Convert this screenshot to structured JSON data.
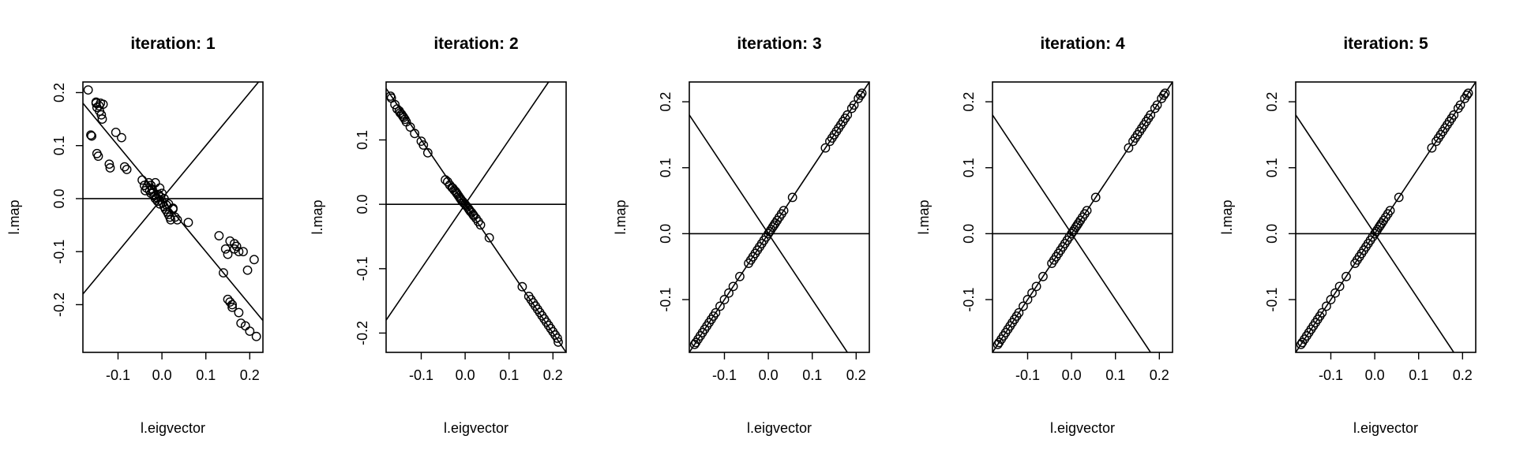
{
  "figure": {
    "panels": [
      {
        "title": "iteration: 1",
        "xlabel": "l.eigvector",
        "ylabel": "l.map"
      },
      {
        "title": "iteration: 2",
        "xlabel": "l.eigvector",
        "ylabel": "l.map"
      },
      {
        "title": "iteration: 3",
        "xlabel": "l.eigvector",
        "ylabel": "l.map"
      },
      {
        "title": "iteration: 4",
        "xlabel": "l.eigvector",
        "ylabel": "l.map"
      },
      {
        "title": "iteration: 5",
        "xlabel": "l.eigvector",
        "ylabel": "l.map"
      }
    ]
  },
  "chart_data": [
    {
      "type": "scatter",
      "title": "iteration: 1",
      "xlabel": "l.eigvector",
      "ylabel": "l.map",
      "xlim": [
        -0.18,
        0.23
      ],
      "ylim": [
        -0.29,
        0.22
      ],
      "xticks": [
        -0.1,
        0.0,
        0.1,
        0.2
      ],
      "yticks": [
        -0.2,
        -0.1,
        0.0,
        0.1,
        0.2
      ],
      "grid": false,
      "reference_lines": [
        {
          "kind": "hline",
          "y": 0
        },
        {
          "kind": "abline",
          "intercept": 0,
          "slope": 1
        },
        {
          "kind": "abline",
          "intercept": 0,
          "slope": -1
        }
      ],
      "x": [
        -0.168,
        -0.162,
        -0.16,
        -0.15,
        -0.148,
        -0.145,
        -0.143,
        -0.142,
        -0.14,
        -0.138,
        -0.136,
        -0.134,
        -0.15,
        -0.148,
        -0.12,
        -0.118,
        -0.105,
        -0.092,
        -0.085,
        -0.08,
        -0.045,
        -0.04,
        -0.035,
        -0.03,
        -0.028,
        -0.025,
        -0.022,
        -0.02,
        -0.018,
        -0.015,
        -0.012,
        -0.01,
        -0.008,
        -0.005,
        -0.003,
        0.0,
        0.002,
        0.005,
        0.008,
        0.01,
        0.012,
        0.015,
        0.018,
        0.02,
        0.025,
        0.03,
        0.035,
        0.06,
        -0.038,
        -0.025,
        -0.015,
        -0.005,
        0.005,
        0.015,
        0.025,
        0.13,
        0.14,
        0.145,
        0.15,
        0.155,
        0.16,
        0.165,
        0.17,
        0.175,
        0.18,
        0.185,
        0.19,
        0.195,
        0.2,
        0.21,
        0.215,
        0.155,
        0.165,
        0.175,
        0.16,
        0.15
      ],
      "y": [
        0.205,
        0.12,
        0.118,
        0.18,
        0.085,
        0.08,
        0.175,
        0.165,
        0.18,
        0.158,
        0.15,
        0.178,
        0.182,
        0.172,
        0.065,
        0.058,
        0.125,
        0.115,
        0.06,
        0.055,
        0.035,
        0.025,
        0.02,
        0.03,
        0.015,
        0.01,
        0.018,
        0.012,
        0.005,
        0.0,
        0.002,
        -0.005,
        0.008,
        -0.01,
        0.003,
        0.01,
        -0.008,
        -0.015,
        -0.02,
        -0.012,
        -0.025,
        -0.03,
        -0.035,
        -0.04,
        -0.02,
        -0.035,
        -0.04,
        -0.045,
        0.015,
        0.025,
        0.03,
        0.02,
        0.0,
        -0.01,
        -0.018,
        -0.07,
        -0.14,
        -0.095,
        -0.19,
        -0.195,
        -0.2,
        -0.085,
        -0.09,
        -0.215,
        -0.235,
        -0.1,
        -0.24,
        -0.135,
        -0.25,
        -0.115,
        -0.26,
        -0.08,
        -0.095,
        -0.1,
        -0.205,
        -0.105
      ]
    },
    {
      "type": "scatter",
      "title": "iteration: 2",
      "xlabel": "l.eigvector",
      "ylabel": "l.map",
      "xlim": [
        -0.18,
        0.23
      ],
      "ylim": [
        -0.23,
        0.19
      ],
      "xticks": [
        -0.1,
        0.0,
        0.1,
        0.2
      ],
      "yticks": [
        -0.2,
        -0.1,
        0.0,
        0.1
      ],
      "grid": false,
      "reference_lines": [
        {
          "kind": "hline",
          "y": 0
        },
        {
          "kind": "abline",
          "intercept": 0,
          "slope": 1
        },
        {
          "kind": "abline",
          "intercept": 0,
          "slope": -1
        }
      ],
      "x": [
        -0.17,
        -0.168,
        -0.16,
        -0.155,
        -0.15,
        -0.148,
        -0.145,
        -0.142,
        -0.14,
        -0.137,
        -0.134,
        -0.125,
        -0.115,
        -0.1,
        -0.095,
        -0.085,
        -0.045,
        -0.04,
        -0.035,
        -0.03,
        -0.028,
        -0.025,
        -0.022,
        -0.02,
        -0.018,
        -0.015,
        -0.012,
        -0.01,
        -0.008,
        -0.005,
        -0.003,
        0.0,
        0.002,
        0.005,
        0.008,
        0.01,
        0.012,
        0.015,
        0.018,
        0.02,
        0.025,
        0.03,
        0.035,
        0.055,
        0.13,
        0.145,
        0.15,
        0.155,
        0.16,
        0.165,
        0.17,
        0.175,
        0.18,
        0.185,
        0.19,
        0.195,
        0.2,
        0.205,
        0.21,
        0.212
      ],
      "y": [
        0.168,
        0.165,
        0.155,
        0.148,
        0.145,
        0.142,
        0.14,
        0.137,
        0.135,
        0.132,
        0.128,
        0.12,
        0.11,
        0.098,
        0.092,
        0.08,
        0.038,
        0.035,
        0.03,
        0.026,
        0.025,
        0.022,
        0.02,
        0.018,
        0.016,
        0.013,
        0.01,
        0.008,
        0.006,
        0.004,
        0.002,
        0.0,
        -0.002,
        -0.004,
        -0.007,
        -0.009,
        -0.011,
        -0.013,
        -0.016,
        -0.018,
        -0.022,
        -0.027,
        -0.032,
        -0.052,
        -0.128,
        -0.143,
        -0.148,
        -0.153,
        -0.158,
        -0.163,
        -0.168,
        -0.173,
        -0.178,
        -0.183,
        -0.188,
        -0.193,
        -0.198,
        -0.203,
        -0.208,
        -0.214
      ]
    },
    {
      "type": "scatter",
      "title": "iteration: 3",
      "xlabel": "l.eigvector",
      "ylabel": "l.map",
      "xlim": [
        -0.18,
        0.23
      ],
      "ylim": [
        -0.18,
        0.23
      ],
      "xticks": [
        -0.1,
        0.0,
        0.1,
        0.2
      ],
      "yticks": [
        -0.1,
        0.0,
        0.1,
        0.2
      ],
      "grid": false,
      "reference_lines": [
        {
          "kind": "hline",
          "y": 0
        },
        {
          "kind": "abline",
          "intercept": 0,
          "slope": 1
        },
        {
          "kind": "abline",
          "intercept": 0,
          "slope": -1
        }
      ],
      "x": [
        -0.168,
        -0.165,
        -0.16,
        -0.155,
        -0.15,
        -0.145,
        -0.14,
        -0.135,
        -0.13,
        -0.125,
        -0.12,
        -0.11,
        -0.1,
        -0.09,
        -0.08,
        -0.065,
        -0.045,
        -0.04,
        -0.035,
        -0.03,
        -0.025,
        -0.02,
        -0.015,
        -0.01,
        -0.005,
        0.0,
        0.003,
        0.006,
        0.01,
        0.013,
        0.016,
        0.02,
        0.025,
        0.03,
        0.035,
        0.055,
        0.13,
        0.14,
        0.145,
        0.15,
        0.155,
        0.16,
        0.165,
        0.17,
        0.175,
        0.18,
        0.19,
        0.195,
        0.205,
        0.21,
        0.213
      ],
      "y": [
        -0.168,
        -0.165,
        -0.16,
        -0.155,
        -0.15,
        -0.145,
        -0.14,
        -0.135,
        -0.13,
        -0.125,
        -0.12,
        -0.11,
        -0.1,
        -0.09,
        -0.08,
        -0.065,
        -0.045,
        -0.04,
        -0.035,
        -0.03,
        -0.025,
        -0.02,
        -0.015,
        -0.01,
        -0.005,
        0.0,
        0.003,
        0.006,
        0.01,
        0.013,
        0.016,
        0.02,
        0.025,
        0.03,
        0.035,
        0.055,
        0.13,
        0.14,
        0.145,
        0.15,
        0.155,
        0.16,
        0.165,
        0.17,
        0.175,
        0.18,
        0.19,
        0.195,
        0.205,
        0.21,
        0.213
      ]
    },
    {
      "type": "scatter",
      "title": "iteration: 4",
      "xlabel": "l.eigvector",
      "ylabel": "l.map",
      "xlim": [
        -0.18,
        0.23
      ],
      "ylim": [
        -0.18,
        0.23
      ],
      "xticks": [
        -0.1,
        0.0,
        0.1,
        0.2
      ],
      "yticks": [
        -0.1,
        0.0,
        0.1,
        0.2
      ],
      "grid": false,
      "reference_lines": [
        {
          "kind": "hline",
          "y": 0
        },
        {
          "kind": "abline",
          "intercept": 0,
          "slope": 1
        },
        {
          "kind": "abline",
          "intercept": 0,
          "slope": -1
        }
      ],
      "x": [
        -0.168,
        -0.165,
        -0.16,
        -0.155,
        -0.15,
        -0.145,
        -0.14,
        -0.135,
        -0.13,
        -0.125,
        -0.12,
        -0.11,
        -0.1,
        -0.09,
        -0.08,
        -0.065,
        -0.045,
        -0.04,
        -0.035,
        -0.03,
        -0.025,
        -0.02,
        -0.015,
        -0.01,
        -0.005,
        0.0,
        0.003,
        0.006,
        0.01,
        0.013,
        0.016,
        0.02,
        0.025,
        0.03,
        0.035,
        0.055,
        0.13,
        0.14,
        0.145,
        0.15,
        0.155,
        0.16,
        0.165,
        0.17,
        0.175,
        0.18,
        0.19,
        0.195,
        0.205,
        0.21,
        0.213
      ],
      "y": [
        -0.168,
        -0.165,
        -0.16,
        -0.155,
        -0.15,
        -0.145,
        -0.14,
        -0.135,
        -0.13,
        -0.125,
        -0.12,
        -0.11,
        -0.1,
        -0.09,
        -0.08,
        -0.065,
        -0.045,
        -0.04,
        -0.035,
        -0.03,
        -0.025,
        -0.02,
        -0.015,
        -0.01,
        -0.005,
        0.0,
        0.003,
        0.006,
        0.01,
        0.013,
        0.016,
        0.02,
        0.025,
        0.03,
        0.035,
        0.055,
        0.13,
        0.14,
        0.145,
        0.15,
        0.155,
        0.16,
        0.165,
        0.17,
        0.175,
        0.18,
        0.19,
        0.195,
        0.205,
        0.21,
        0.213
      ]
    },
    {
      "type": "scatter",
      "title": "iteration: 5",
      "xlabel": "l.eigvector",
      "ylabel": "l.map",
      "xlim": [
        -0.18,
        0.23
      ],
      "ylim": [
        -0.18,
        0.23
      ],
      "xticks": [
        -0.1,
        0.0,
        0.1,
        0.2
      ],
      "yticks": [
        -0.1,
        0.0,
        0.1,
        0.2
      ],
      "grid": false,
      "reference_lines": [
        {
          "kind": "hline",
          "y": 0
        },
        {
          "kind": "abline",
          "intercept": 0,
          "slope": 1
        },
        {
          "kind": "abline",
          "intercept": 0,
          "slope": -1
        }
      ],
      "x": [
        -0.168,
        -0.165,
        -0.16,
        -0.155,
        -0.15,
        -0.145,
        -0.14,
        -0.135,
        -0.13,
        -0.125,
        -0.12,
        -0.11,
        -0.1,
        -0.09,
        -0.08,
        -0.065,
        -0.045,
        -0.04,
        -0.035,
        -0.03,
        -0.025,
        -0.02,
        -0.015,
        -0.01,
        -0.005,
        0.0,
        0.003,
        0.006,
        0.01,
        0.013,
        0.016,
        0.02,
        0.025,
        0.03,
        0.035,
        0.055,
        0.13,
        0.14,
        0.145,
        0.15,
        0.155,
        0.16,
        0.165,
        0.17,
        0.175,
        0.18,
        0.19,
        0.195,
        0.205,
        0.21,
        0.213
      ],
      "y": [
        -0.168,
        -0.165,
        -0.16,
        -0.155,
        -0.15,
        -0.145,
        -0.14,
        -0.135,
        -0.13,
        -0.125,
        -0.12,
        -0.11,
        -0.1,
        -0.09,
        -0.08,
        -0.065,
        -0.045,
        -0.04,
        -0.035,
        -0.03,
        -0.025,
        -0.02,
        -0.015,
        -0.01,
        -0.005,
        0.0,
        0.003,
        0.006,
        0.01,
        0.013,
        0.016,
        0.02,
        0.025,
        0.03,
        0.035,
        0.055,
        0.13,
        0.14,
        0.145,
        0.15,
        0.155,
        0.16,
        0.165,
        0.17,
        0.175,
        0.18,
        0.19,
        0.195,
        0.205,
        0.21,
        0.213
      ]
    }
  ]
}
